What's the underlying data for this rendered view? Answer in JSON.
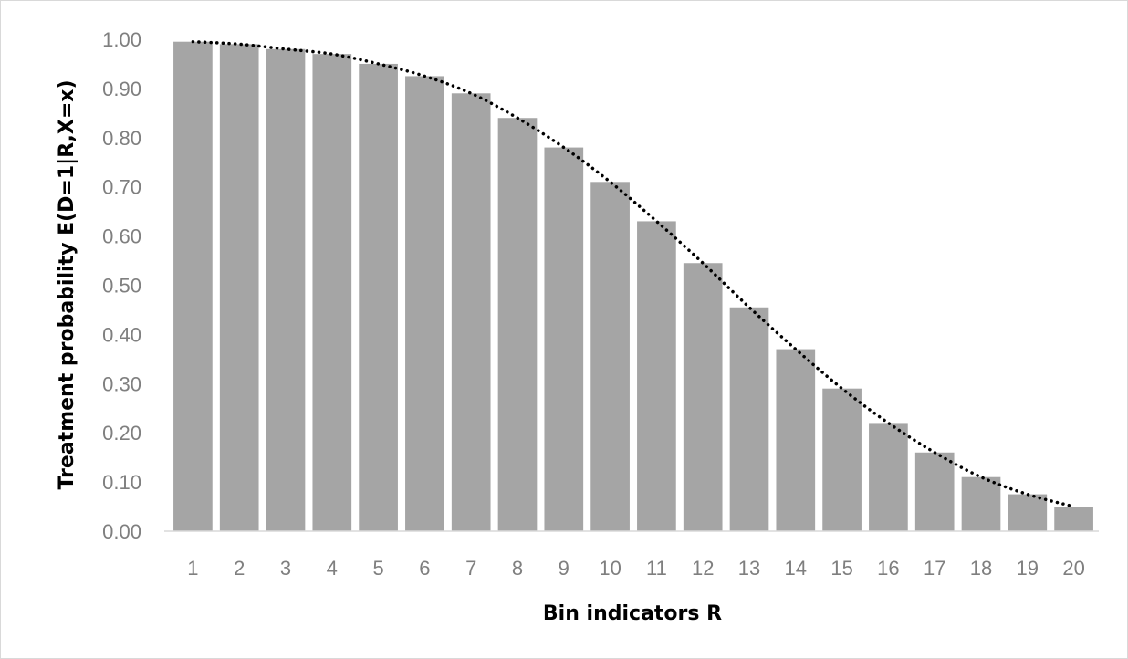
{
  "chart_data": {
    "type": "bar",
    "xlabel": "Bin indicators R",
    "ylabel": "Treatment probability  E(D=1|R,X=x)",
    "ylim": [
      0,
      1
    ],
    "yticks": [
      "0.00",
      "0.10",
      "0.20",
      "0.30",
      "0.40",
      "0.50",
      "0.60",
      "0.70",
      "0.80",
      "0.90",
      "1.00"
    ],
    "categories": [
      "1",
      "2",
      "3",
      "4",
      "5",
      "6",
      "7",
      "8",
      "9",
      "10",
      "11",
      "12",
      "13",
      "14",
      "15",
      "16",
      "17",
      "18",
      "19",
      "20"
    ],
    "values": [
      0.995,
      0.99,
      0.98,
      0.97,
      0.95,
      0.925,
      0.89,
      0.84,
      0.78,
      0.71,
      0.63,
      0.545,
      0.455,
      0.37,
      0.29,
      0.22,
      0.16,
      0.11,
      0.075,
      0.05
    ],
    "trendline": {
      "style": "dotted",
      "color": "#000000"
    },
    "grid": false,
    "legend": "none",
    "bar_color": "#a5a5a5"
  }
}
